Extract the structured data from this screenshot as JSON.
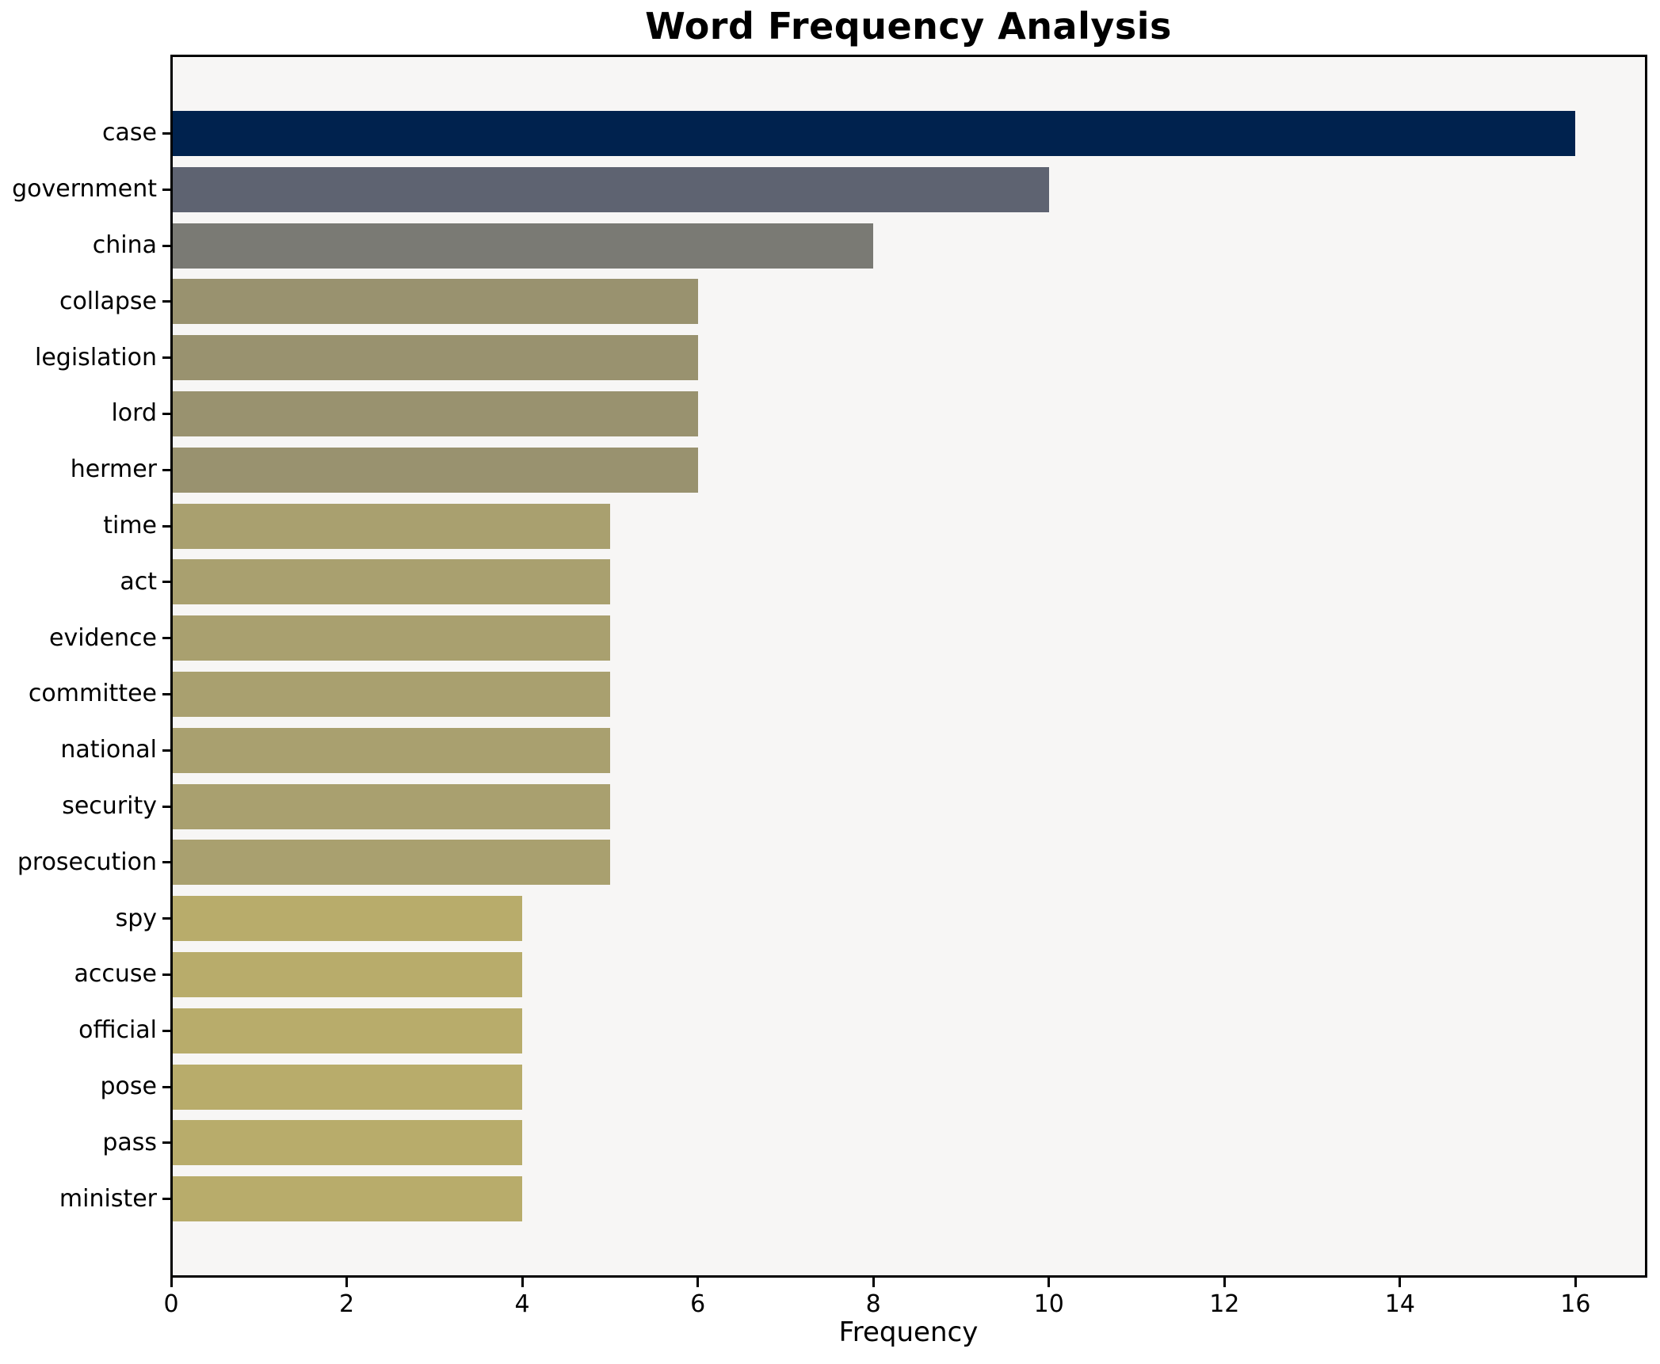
{
  "title": "Word Frequency Analysis",
  "chart_data": {
    "type": "bar",
    "orientation": "horizontal",
    "title": "Word Frequency Analysis",
    "xlabel": "Frequency",
    "ylabel": "",
    "xlim": [
      0,
      16.8
    ],
    "x_ticks": [
      0,
      2,
      4,
      6,
      8,
      10,
      12,
      14,
      16
    ],
    "grid": false,
    "legend": "none",
    "categories": [
      "case",
      "government",
      "china",
      "collapse",
      "legislation",
      "lord",
      "hermer",
      "time",
      "act",
      "evidence",
      "committee",
      "national",
      "security",
      "prosecution",
      "spy",
      "accuse",
      "official",
      "pose",
      "pass",
      "minister"
    ],
    "values": [
      16,
      10,
      8,
      6,
      6,
      6,
      6,
      5,
      5,
      5,
      5,
      5,
      5,
      5,
      4,
      4,
      4,
      4,
      4,
      4
    ],
    "bar_colors": [
      "#00224e",
      "#5e6371",
      "#7a7a74",
      "#99926f",
      "#99926f",
      "#99926f",
      "#99926f",
      "#a9a06f",
      "#a9a06f",
      "#a9a06f",
      "#a9a06f",
      "#a9a06f",
      "#a9a06f",
      "#a9a06f",
      "#b8ac6b",
      "#b8ac6b",
      "#b8ac6b",
      "#b8ac6b",
      "#b8ac6b",
      "#b8ac6b"
    ]
  },
  "colors": {
    "plot_background": "#f7f6f5",
    "figure_background": "#ffffff",
    "spine": "#000000",
    "text": "#000000"
  }
}
